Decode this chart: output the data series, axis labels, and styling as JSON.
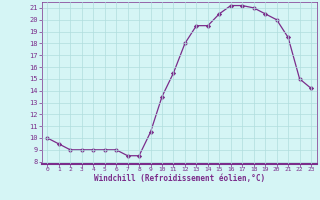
{
  "hours": [
    0,
    1,
    2,
    3,
    4,
    5,
    6,
    7,
    8,
    9,
    10,
    11,
    12,
    13,
    14,
    15,
    16,
    17,
    18,
    19,
    20,
    21,
    22,
    23
  ],
  "values": [
    10.0,
    9.5,
    9.0,
    9.0,
    9.0,
    9.0,
    9.0,
    8.5,
    8.5,
    10.5,
    13.5,
    15.5,
    18.0,
    19.5,
    19.5,
    20.5,
    21.2,
    21.2,
    21.0,
    20.5,
    20.0,
    18.5,
    15.0,
    14.2
  ],
  "line_color": "#7b2d8b",
  "marker": "D",
  "marker_size": 2.2,
  "bg_color": "#d5f5f5",
  "grid_color": "#b0dede",
  "xlabel": "Windchill (Refroidissement éolien,°C)",
  "xlim": [
    -0.5,
    23.5
  ],
  "ylim": [
    7.8,
    21.5
  ],
  "yticks": [
    8,
    9,
    10,
    11,
    12,
    13,
    14,
    15,
    16,
    17,
    18,
    19,
    20,
    21
  ],
  "xticks": [
    0,
    1,
    2,
    3,
    4,
    5,
    6,
    7,
    8,
    9,
    10,
    11,
    12,
    13,
    14,
    15,
    16,
    17,
    18,
    19,
    20,
    21,
    22,
    23
  ],
  "spine_color": "#7b2d8b",
  "tick_color": "#7b2d8b",
  "label_color": "#7b2d8b"
}
